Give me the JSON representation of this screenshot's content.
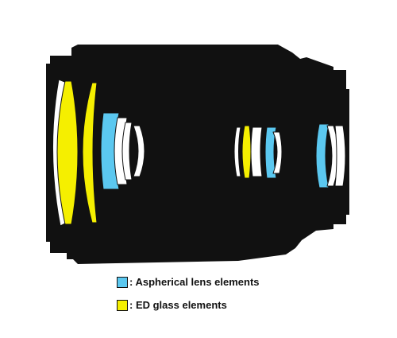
{
  "legend": {
    "items": [
      {
        "label": ": Aspherical lens elements",
        "color": "#5bc8f0",
        "kind": "aspherical"
      },
      {
        "label": ": ED glass elements",
        "color": "#f5ef00",
        "kind": "ed-glass"
      }
    ]
  },
  "colors": {
    "barrel": "#111111",
    "lens_plain": "#ffffff",
    "aspherical": "#5bc8f0",
    "ed_glass": "#f5ef00",
    "lens_outline": "#111111"
  }
}
